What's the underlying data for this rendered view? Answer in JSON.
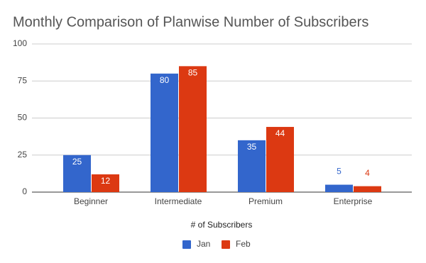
{
  "chart_data": {
    "type": "bar",
    "title": "Monthly Comparison of Planwise Number of Subscribers",
    "x_label": "# of Subscribers",
    "categories": [
      "Beginner",
      "Intermediate",
      "Premium",
      "Enterprise"
    ],
    "series": [
      {
        "name": "Jan",
        "color": "#3366cc",
        "values": [
          25,
          80,
          35,
          5
        ]
      },
      {
        "name": "Feb",
        "color": "#dc3912",
        "values": [
          12,
          85,
          44,
          4
        ]
      }
    ],
    "ylim": [
      0,
      100
    ],
    "yticks": [
      0,
      25,
      50,
      75,
      100
    ],
    "grid": true,
    "legend": "bottom"
  }
}
